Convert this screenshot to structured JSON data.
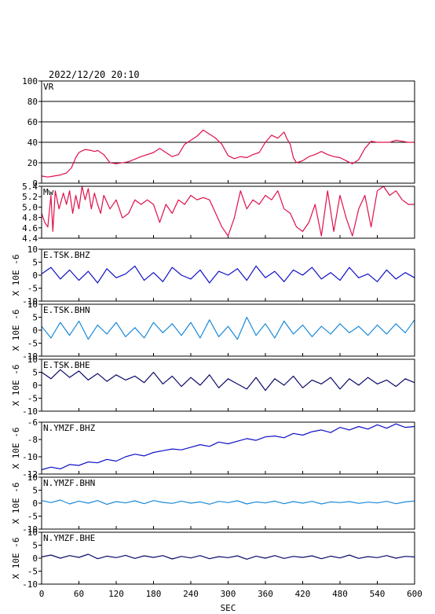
{
  "header": {
    "timestamp": "2022/12/20 20:10"
  },
  "colors": {
    "vr": "#e0104a",
    "mw": "#e0104a",
    "dark_blue": "#1010c8",
    "light_blue": "#1a8ad8",
    "navy": "#0a0a68"
  },
  "chart_data": [
    {
      "type": "line",
      "label": "VR",
      "ylim": [
        0,
        100
      ],
      "yticks": [
        "100",
        "80",
        "60",
        "40",
        "20",
        "0"
      ],
      "grid": true,
      "color_key": "vr",
      "x": [
        0,
        10,
        20,
        30,
        40,
        48,
        55,
        60,
        70,
        80,
        85,
        90,
        100,
        110,
        120,
        140,
        160,
        180,
        190,
        200,
        210,
        220,
        230,
        240,
        250,
        260,
        270,
        280,
        290,
        300,
        310,
        320,
        330,
        340,
        350,
        360,
        370,
        380,
        390,
        395,
        400,
        405,
        410,
        420,
        430,
        440,
        450,
        460,
        470,
        480,
        490,
        500,
        510,
        520,
        530,
        540,
        550,
        560,
        570,
        580,
        590,
        600
      ],
      "values": [
        7,
        6,
        7,
        8,
        10,
        15,
        25,
        30,
        33,
        32,
        31,
        32,
        28,
        20,
        19,
        21,
        26,
        30,
        34,
        30,
        26,
        28,
        38,
        42,
        46,
        52,
        48,
        44,
        38,
        27,
        24,
        26,
        25,
        28,
        30,
        40,
        47,
        44,
        50,
        43,
        38,
        25,
        20,
        22,
        26,
        28,
        31,
        28,
        26,
        25,
        22,
        19,
        23,
        34,
        41,
        40,
        40,
        40,
        42,
        41,
        40,
        40
      ]
    },
    {
      "type": "line",
      "label": "Mw",
      "ylim": [
        4.35,
        5.5
      ],
      "yticks": [
        "5.4",
        "5.2",
        "5.0",
        "4.8",
        "4.6",
        "4.4"
      ],
      "grid": false,
      "color_key": "mw",
      "x": [
        0,
        5,
        10,
        15,
        18,
        22,
        28,
        35,
        40,
        45,
        50,
        55,
        60,
        65,
        70,
        75,
        80,
        85,
        90,
        95,
        100,
        110,
        120,
        130,
        140,
        150,
        160,
        170,
        180,
        190,
        200,
        210,
        220,
        230,
        240,
        250,
        260,
        270,
        280,
        290,
        300,
        310,
        320,
        330,
        340,
        350,
        360,
        370,
        380,
        390,
        400,
        410,
        420,
        430,
        440,
        450,
        460,
        470,
        480,
        490,
        500,
        510,
        520,
        530,
        540,
        550,
        560,
        570,
        580,
        590,
        600
      ],
      "values": [
        4.9,
        4.7,
        4.6,
        5.3,
        4.5,
        5.4,
        5.0,
        5.35,
        5.1,
        5.4,
        4.9,
        5.3,
        5.0,
        5.5,
        5.2,
        5.45,
        5.0,
        5.35,
        5.1,
        4.9,
        5.3,
        5.0,
        5.2,
        4.8,
        4.9,
        5.2,
        5.1,
        5.2,
        5.1,
        4.7,
        5.1,
        4.9,
        5.2,
        5.1,
        5.3,
        5.2,
        5.25,
        5.2,
        4.9,
        4.6,
        4.4,
        4.8,
        5.4,
        5.0,
        5.2,
        5.1,
        5.3,
        5.2,
        5.4,
        5.0,
        4.9,
        4.6,
        4.5,
        4.7,
        5.1,
        4.4,
        5.4,
        4.5,
        5.3,
        4.8,
        4.4,
        5.0,
        5.3,
        4.6,
        5.4,
        5.5,
        5.3,
        5.4,
        5.2,
        5.1,
        5.1
      ]
    },
    {
      "type": "line",
      "label": "E.TSK.BHZ",
      "ylim": [
        -10,
        10
      ],
      "yticks": [
        "10",
        "5",
        "0",
        "-5",
        "-10"
      ],
      "ylabel": "X 10E -6",
      "grid": false,
      "color_key": "dark_blue",
      "x": [
        0,
        15,
        30,
        45,
        60,
        75,
        90,
        105,
        120,
        135,
        150,
        165,
        180,
        195,
        210,
        225,
        240,
        255,
        270,
        285,
        300,
        315,
        330,
        345,
        360,
        375,
        390,
        405,
        420,
        435,
        450,
        465,
        480,
        495,
        510,
        525,
        540,
        555,
        570,
        585,
        600
      ],
      "values": [
        0.5,
        3,
        -1.5,
        2,
        -2,
        1.5,
        -3,
        2.5,
        -1,
        0.5,
        3.5,
        -2,
        1,
        -2.5,
        3,
        0,
        -1.5,
        2,
        -3,
        1.5,
        0,
        2.5,
        -2,
        3.5,
        -1,
        1.5,
        -2.5,
        2,
        0,
        3,
        -1.5,
        1,
        -2,
        3,
        -1,
        0.5,
        -2.5,
        2,
        -1.5,
        1,
        -1
      ]
    },
    {
      "type": "line",
      "label": "E.TSK.BHN",
      "ylim": [
        -10,
        10
      ],
      "yticks": [
        "10",
        "5",
        "0",
        "-5",
        "-10"
      ],
      "ylabel": "X 10E -6",
      "grid": false,
      "color_key": "light_blue",
      "x": [
        0,
        15,
        30,
        45,
        60,
        75,
        90,
        105,
        120,
        135,
        150,
        165,
        180,
        195,
        210,
        225,
        240,
        255,
        270,
        285,
        300,
        315,
        330,
        345,
        360,
        375,
        390,
        405,
        420,
        435,
        450,
        465,
        480,
        495,
        510,
        525,
        540,
        555,
        570,
        585,
        600
      ],
      "values": [
        1.5,
        -3,
        3,
        -2,
        3.5,
        -3.5,
        2,
        -1.5,
        3,
        -2.5,
        1,
        -3,
        3,
        -1,
        2.5,
        -2,
        3,
        -3,
        4,
        -2.5,
        1.5,
        -3.5,
        5,
        -2,
        2.5,
        -3,
        3.5,
        -1.5,
        2,
        -2.5,
        1.5,
        -1.5,
        2.5,
        -1,
        1.5,
        -2,
        2,
        -1.5,
        2.5,
        -1,
        4
      ]
    },
    {
      "type": "line",
      "label": "E.TSK.BHE",
      "ylim": [
        -10,
        10
      ],
      "yticks": [
        "10",
        "5",
        "0",
        "-5",
        "-10"
      ],
      "ylabel": "X 10E -6",
      "grid": false,
      "color_key": "navy",
      "x": [
        0,
        15,
        30,
        45,
        60,
        75,
        90,
        105,
        120,
        135,
        150,
        165,
        180,
        195,
        210,
        225,
        240,
        255,
        270,
        285,
        300,
        315,
        330,
        345,
        360,
        375,
        390,
        405,
        420,
        435,
        450,
        465,
        480,
        495,
        510,
        525,
        540,
        555,
        570,
        585,
        600
      ],
      "values": [
        5,
        2.5,
        6,
        3,
        5.5,
        2,
        4.5,
        1.5,
        4,
        2,
        3.5,
        1,
        5,
        0.5,
        3.5,
        -0.5,
        3,
        0,
        4,
        -1,
        2.5,
        0.5,
        -1.5,
        3,
        -2,
        2.5,
        0,
        3.5,
        -1,
        2,
        0.5,
        3,
        -1.5,
        2.5,
        0,
        3,
        0.5,
        2,
        -0.5,
        2.5,
        1
      ]
    },
    {
      "type": "line",
      "label": "N.YMZF.BHZ",
      "ylim": [
        -12,
        -6
      ],
      "yticks": [
        "-6",
        "-8",
        "-10",
        "-12"
      ],
      "ylabel": "X 10E -6",
      "grid": false,
      "color_key": "dark_blue",
      "x": [
        0,
        15,
        30,
        45,
        60,
        75,
        90,
        105,
        120,
        135,
        150,
        165,
        180,
        195,
        210,
        225,
        240,
        255,
        270,
        285,
        300,
        315,
        330,
        345,
        360,
        375,
        390,
        405,
        420,
        435,
        450,
        465,
        480,
        495,
        510,
        525,
        540,
        555,
        570,
        585,
        600
      ],
      "values": [
        -11.5,
        -11.2,
        -11.4,
        -10.9,
        -11.0,
        -10.6,
        -10.7,
        -10.3,
        -10.5,
        -10.0,
        -9.7,
        -9.9,
        -9.5,
        -9.3,
        -9.1,
        -9.2,
        -8.9,
        -8.6,
        -8.8,
        -8.3,
        -8.5,
        -8.2,
        -7.9,
        -8.1,
        -7.7,
        -7.6,
        -7.8,
        -7.3,
        -7.5,
        -7.1,
        -6.9,
        -7.2,
        -6.6,
        -6.9,
        -6.5,
        -6.8,
        -6.3,
        -6.7,
        -6.2,
        -6.6,
        -6.5
      ]
    },
    {
      "type": "line",
      "label": "N.YMZF.BHN",
      "ylim": [
        -10,
        10
      ],
      "yticks": [
        "10",
        "5",
        "0",
        "-5",
        "-10"
      ],
      "ylabel": "X 10E -6",
      "grid": false,
      "color_key": "light_blue",
      "x": [
        0,
        15,
        30,
        45,
        60,
        75,
        90,
        105,
        120,
        135,
        150,
        165,
        180,
        195,
        210,
        225,
        240,
        255,
        270,
        285,
        300,
        315,
        330,
        345,
        360,
        375,
        390,
        405,
        420,
        435,
        450,
        465,
        480,
        495,
        510,
        525,
        540,
        555,
        570,
        585,
        600
      ],
      "values": [
        1,
        0.2,
        1.2,
        -0.3,
        0.8,
        0,
        1,
        -0.5,
        0.6,
        0.1,
        0.9,
        -0.2,
        1,
        0.3,
        -0.1,
        0.8,
        0,
        0.5,
        -0.4,
        0.7,
        0.2,
        0.9,
        -0.3,
        0.5,
        0.1,
        0.8,
        -0.2,
        0.6,
        0,
        0.7,
        -0.3,
        0.5,
        0.2,
        0.6,
        -0.1,
        0.4,
        0.1,
        0.7,
        -0.2,
        0.5,
        0.8
      ]
    },
    {
      "type": "line",
      "label": "N.YMZF.BHE",
      "ylim": [
        -10,
        10
      ],
      "yticks": [
        "10",
        "5",
        "0",
        "-5",
        "-10"
      ],
      "ylabel": "X 10E -6",
      "grid": false,
      "color_key": "navy",
      "x": [
        0,
        15,
        30,
        45,
        60,
        75,
        90,
        105,
        120,
        135,
        150,
        165,
        180,
        195,
        210,
        225,
        240,
        255,
        270,
        285,
        300,
        315,
        330,
        345,
        360,
        375,
        390,
        405,
        420,
        435,
        450,
        465,
        480,
        495,
        510,
        525,
        540,
        555,
        570,
        585,
        600
      ],
      "values": [
        0.5,
        1.2,
        0,
        1,
        0.3,
        1.5,
        -0.2,
        0.8,
        0.2,
        1.1,
        -0.1,
        0.9,
        0.3,
        1,
        -0.3,
        0.7,
        0.1,
        1,
        -0.2,
        0.6,
        0.2,
        0.9,
        -0.4,
        0.8,
        0,
        1,
        -0.1,
        0.7,
        0.3,
        0.9,
        -0.2,
        0.8,
        0.1,
        1.2,
        -0.1,
        0.6,
        0.2,
        1,
        0,
        0.7,
        0.5
      ]
    }
  ],
  "x_axis": {
    "xlim": [
      0,
      600
    ],
    "ticks": [
      "0",
      "60",
      "120",
      "180",
      "240",
      "300",
      "360",
      "420",
      "480",
      "540",
      "600"
    ],
    "xlabel": "SEC"
  }
}
